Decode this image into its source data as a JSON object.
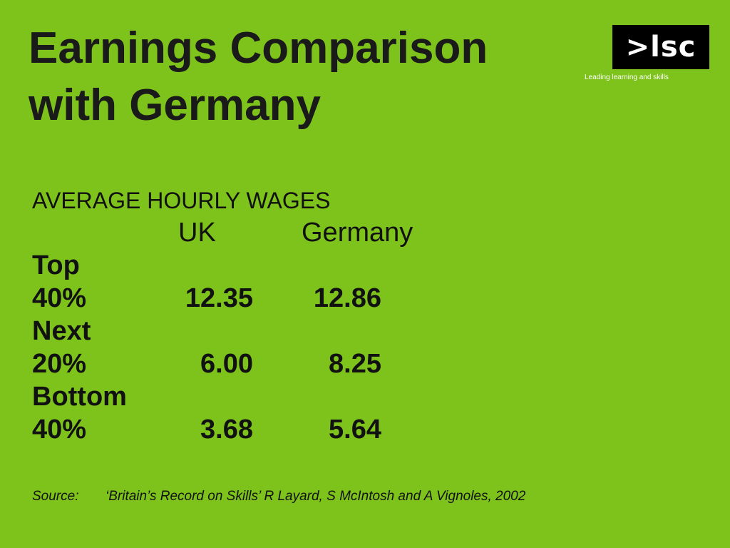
{
  "slide": {
    "title_line1": "Earnings Comparison",
    "title_line2": "with Germany"
  },
  "logo": {
    "text": ">lsc",
    "tagline": "Leading learning and skills"
  },
  "table": {
    "heading": "AVERAGE HOURLY WAGES",
    "columns": [
      "UK",
      "Germany"
    ],
    "rows": [
      {
        "label_line1": "Top",
        "label_line2": "40%",
        "uk": "12.35",
        "germany": "12.86"
      },
      {
        "label_line1": "Next",
        "label_line2": "20%",
        "uk": "6.00",
        "germany": "8.25"
      },
      {
        "label_line1": "Bottom",
        "label_line2": "40%",
        "uk": "3.68",
        "germany": "5.64"
      }
    ]
  },
  "source": {
    "label": "Source:",
    "text": "‘Britain’s Record on Skills’ R Layard, S McIntosh and A Vignoles, 2002"
  },
  "colors": {
    "background": "#7ec31b",
    "text": "#111111",
    "logo_bg": "#000000",
    "logo_fg": "#ffffff"
  }
}
